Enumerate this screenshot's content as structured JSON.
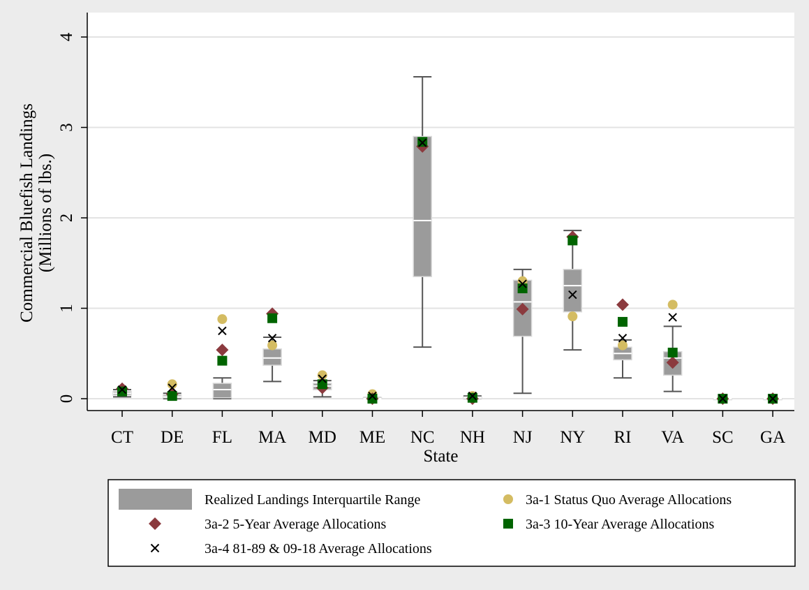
{
  "chart_data": {
    "type": "box",
    "xlabel": "State",
    "ylabel_lines": [
      "Commercial Bluefish Landings",
      "(Millions of lbs.)"
    ],
    "ylim": [
      0,
      4
    ],
    "yticks": [
      0,
      1,
      2,
      3,
      4
    ],
    "grid": true,
    "legend_position": "bottom",
    "categories": [
      "CT",
      "DE",
      "FL",
      "MA",
      "MD",
      "ME",
      "NC",
      "NH",
      "NJ",
      "NY",
      "RI",
      "VA",
      "SC",
      "GA"
    ],
    "boxes": [
      {
        "state": "CT",
        "whisker_low": 0.02,
        "q1": 0.04,
        "median": 0.06,
        "q3": 0.08,
        "whisker_high": 0.1
      },
      {
        "state": "DE",
        "whisker_low": 0.0,
        "q1": 0.01,
        "median": 0.02,
        "q3": 0.04,
        "whisker_high": 0.06
      },
      {
        "state": "FL",
        "whisker_low": 0.0,
        "q1": 0.01,
        "median": 0.1,
        "q3": 0.17,
        "whisker_high": 0.23
      },
      {
        "state": "MA",
        "whisker_low": 0.19,
        "q1": 0.37,
        "median": 0.45,
        "q3": 0.55,
        "whisker_high": 0.68
      },
      {
        "state": "MD",
        "whisker_low": 0.02,
        "q1": 0.1,
        "median": 0.14,
        "q3": 0.17,
        "whisker_high": 0.2
      },
      {
        "state": "ME",
        "whisker_low": 0.0,
        "q1": 0.0,
        "median": 0.0,
        "q3": 0.01,
        "whisker_high": 0.01
      },
      {
        "state": "NC",
        "whisker_low": 0.57,
        "q1": 1.35,
        "median": 1.97,
        "q3": 2.9,
        "whisker_high": 3.56
      },
      {
        "state": "NH",
        "whisker_low": 0.0,
        "q1": 0.0,
        "median": 0.01,
        "q3": 0.02,
        "whisker_high": 0.03
      },
      {
        "state": "NJ",
        "whisker_low": 0.06,
        "q1": 0.69,
        "median": 1.07,
        "q3": 1.31,
        "whisker_high": 1.43
      },
      {
        "state": "NY",
        "whisker_low": 0.54,
        "q1": 0.96,
        "median": 1.25,
        "q3": 1.43,
        "whisker_high": 1.86
      },
      {
        "state": "RI",
        "whisker_low": 0.23,
        "q1": 0.43,
        "median": 0.5,
        "q3": 0.57,
        "whisker_high": 0.65
      },
      {
        "state": "VA",
        "whisker_low": 0.08,
        "q1": 0.26,
        "median": 0.45,
        "q3": 0.52,
        "whisker_high": 0.8
      },
      {
        "state": "SC",
        "whisker_low": 0.0,
        "q1": 0.0,
        "median": 0.0,
        "q3": 0.0,
        "whisker_high": 0.0
      },
      {
        "state": "GA",
        "whisker_low": 0.0,
        "q1": 0.0,
        "median": 0.0,
        "q3": 0.0,
        "whisker_high": 0.0
      }
    ],
    "series": [
      {
        "name": "3a-1 Status Quo Average Allocations",
        "marker": "circle",
        "color": "#d4bc62",
        "values": [
          0.09,
          0.16,
          0.88,
          0.59,
          0.26,
          0.05,
          2.81,
          0.03,
          1.3,
          0.91,
          0.59,
          1.04,
          0.0,
          0.0
        ]
      },
      {
        "name": "3a-2 5-Year Average Allocations",
        "marker": "diamond",
        "color": "#8b3a3e",
        "values": [
          0.11,
          0.05,
          0.54,
          0.94,
          0.12,
          0.0,
          2.79,
          0.0,
          0.99,
          1.79,
          1.04,
          0.4,
          0.0,
          0.0
        ]
      },
      {
        "name": "3a-3 10-Year Average Allocations",
        "marker": "square",
        "color": "#006400",
        "values": [
          0.08,
          0.03,
          0.42,
          0.89,
          0.16,
          0.0,
          2.84,
          0.01,
          1.22,
          1.75,
          0.85,
          0.51,
          0.0,
          0.0
        ]
      },
      {
        "name": "3a-4 81-89 & 09-18 Average Allocations",
        "marker": "x",
        "color": "#000000",
        "values": [
          0.1,
          0.12,
          0.75,
          0.67,
          0.22,
          0.03,
          2.83,
          0.03,
          1.27,
          1.15,
          0.67,
          0.9,
          0.0,
          0.0
        ]
      }
    ],
    "legend": [
      {
        "label": "Realized Landings Interquartile Range",
        "marker": "box",
        "color": "#9b9b9b"
      },
      {
        "label": "3a-1 Status Quo Average Allocations",
        "marker": "circle",
        "color": "#d4bc62"
      },
      {
        "label": "3a-2 5-Year Average Allocations",
        "marker": "diamond",
        "color": "#8b3a3e"
      },
      {
        "label": "3a-3 10-Year Average Allocations",
        "marker": "square",
        "color": "#006400"
      },
      {
        "label": "3a-4 81-89 & 09-18 Average Allocations",
        "marker": "x",
        "color": "#000000"
      }
    ],
    "colors": {
      "background": "#ececec",
      "plot_bg": "#ffffff",
      "box_fill": "#9b9b9b",
      "whisker": "#555555",
      "median": "#ffffff"
    }
  }
}
